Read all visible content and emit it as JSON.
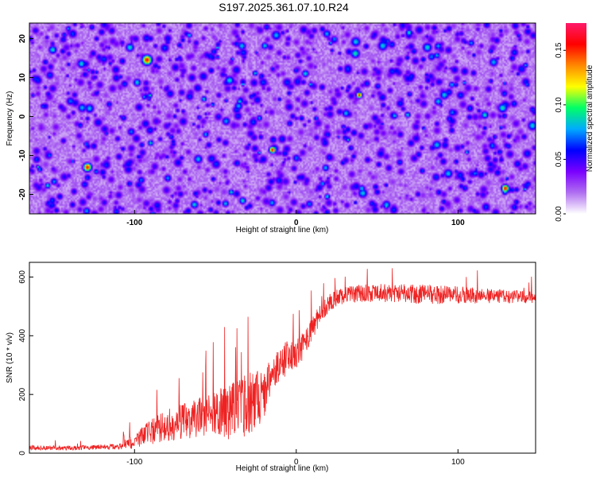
{
  "chart_data": [
    {
      "type": "heatmap",
      "title": "S197.2025.361.07.10.R24",
      "xlabel": "Height of straight line (km)",
      "ylabel": "Frequency (Hz)",
      "xlim": [
        -165,
        148
      ],
      "ylim": [
        -25,
        24
      ],
      "xticks": [
        -100,
        0,
        100
      ],
      "xtick_labels": [
        "-100",
        "0",
        "100"
      ],
      "yticks": [
        -20,
        -10,
        0,
        10,
        20
      ],
      "ytick_labels": [
        "-20",
        "-10",
        "0",
        "10",
        "20"
      ],
      "colorbar": {
        "label": "Normalized spectral amplitude",
        "range": [
          0.0,
          0.175
        ],
        "ticks": [
          0.0,
          0.05,
          0.1,
          0.15
        ],
        "tick_labels": [
          "0.00",
          "0.05",
          "0.10",
          "0.15"
        ],
        "colors": [
          "#ffffff",
          "#b06ff0",
          "#7a00ff",
          "#0000ff",
          "#00aaff",
          "#00ff66",
          "#ffff00",
          "#ff8800",
          "#ff0000",
          "#ff1a6a"
        ]
      },
      "description_values": {
        "background_level": 0.03,
        "typical_peak": 0.08,
        "max_peak": 0.16
      }
    },
    {
      "type": "line",
      "title": "",
      "xlabel": "Height of straight line (km)",
      "ylabel": "SNR (10 * v/v)",
      "xlim": [
        -165,
        148
      ],
      "ylim": [
        0,
        650
      ],
      "xticks": [
        -100,
        0,
        100
      ],
      "xtick_labels": [
        "-100",
        "0",
        "100"
      ],
      "yticks": [
        0,
        200,
        400,
        600
      ],
      "ytick_labels": [
        "0",
        "200",
        "400",
        "600"
      ],
      "color": "#ee2222",
      "envelope": {
        "x": [
          -165,
          -140,
          -110,
          -100,
          -90,
          -80,
          -70,
          -60,
          -50,
          -40,
          -30,
          -20,
          -15,
          -10,
          -5,
          0,
          5,
          10,
          15,
          20,
          25,
          30,
          40,
          60,
          80,
          100,
          120,
          148
        ],
        "mean": [
          18,
          18,
          22,
          40,
          75,
          95,
          110,
          120,
          135,
          145,
          165,
          200,
          260,
          300,
          330,
          340,
          370,
          430,
          470,
          510,
          530,
          540,
          545,
          545,
          540,
          540,
          535,
          530
        ],
        "spread": [
          8,
          8,
          10,
          25,
          45,
          55,
          60,
          70,
          80,
          100,
          110,
          90,
          70,
          60,
          60,
          55,
          45,
          40,
          35,
          30,
          30,
          30,
          30,
          32,
          35,
          30,
          25,
          20
        ]
      }
    }
  ]
}
